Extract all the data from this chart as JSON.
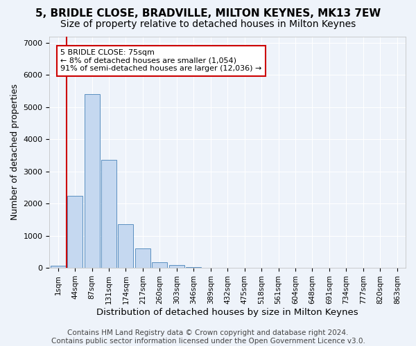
{
  "title1": "5, BRIDLE CLOSE, BRADVILLE, MILTON KEYNES, MK13 7EW",
  "title2": "Size of property relative to detached houses in Milton Keynes",
  "xlabel": "Distribution of detached houses by size in Milton Keynes",
  "ylabel": "Number of detached properties",
  "footnote": "Contains HM Land Registry data © Crown copyright and database right 2024.\nContains public sector information licensed under the Open Government Licence v3.0.",
  "bin_labels": [
    "1sqm",
    "44sqm",
    "87sqm",
    "131sqm",
    "174sqm",
    "217sqm",
    "260sqm",
    "303sqm",
    "346sqm",
    "389sqm",
    "432sqm",
    "475sqm",
    "518sqm",
    "561sqm",
    "604sqm",
    "648sqm",
    "691sqm",
    "734sqm",
    "777sqm",
    "820sqm",
    "863sqm"
  ],
  "bar_values": [
    75,
    2250,
    5400,
    3350,
    1350,
    600,
    170,
    90,
    20,
    0,
    0,
    0,
    0,
    0,
    0,
    0,
    0,
    0,
    0,
    0,
    0
  ],
  "bar_color": "#c5d8f0",
  "bar_edge_color": "#5a8fc0",
  "vline_x": 0.5,
  "vline_color": "#cc0000",
  "annotation_text": "5 BRIDLE CLOSE: 75sqm\n← 8% of detached houses are smaller (1,054)\n91% of semi-detached houses are larger (12,036) →",
  "annotation_box_color": "#ffffff",
  "annotation_box_edge": "#cc0000",
  "ylim": [
    0,
    7200
  ],
  "yticks": [
    0,
    1000,
    2000,
    3000,
    4000,
    5000,
    6000,
    7000
  ],
  "bg_color": "#eef3fa",
  "grid_color": "#ffffff",
  "title1_fontsize": 11,
  "title2_fontsize": 10,
  "xlabel_fontsize": 9.5,
  "ylabel_fontsize": 9,
  "footnote_fontsize": 7.5
}
